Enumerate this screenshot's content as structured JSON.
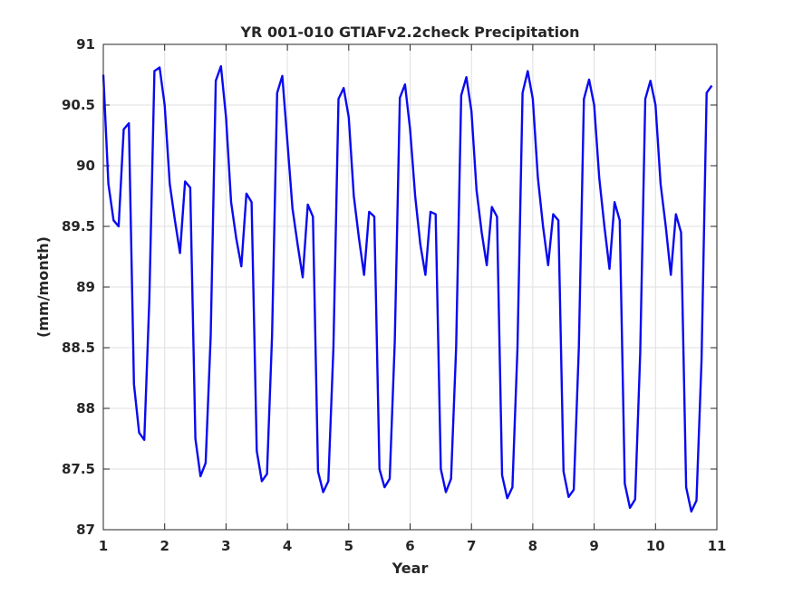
{
  "chart_data": {
    "type": "line",
    "title": "YR 001-010 GTIAFv2.2check Precipitation",
    "xlabel": "Year",
    "ylabel": "(mm/month)",
    "xlim": [
      1,
      11
    ],
    "ylim": [
      87,
      91
    ],
    "xticks": [
      1,
      2,
      3,
      4,
      5,
      6,
      7,
      8,
      9,
      10,
      11
    ],
    "yticks": [
      87,
      87.5,
      88,
      88.5,
      89,
      89.5,
      90,
      90.5,
      91
    ],
    "grid": true,
    "line_color": "#0a0af0",
    "series": [
      {
        "x": [
          1.0,
          1.083,
          1.167,
          1.25,
          1.333,
          1.417,
          1.5,
          1.583,
          1.667,
          1.75,
          1.833,
          1.917,
          2.0,
          2.083,
          2.167,
          2.25,
          2.333,
          2.417,
          2.5,
          2.583,
          2.667,
          2.75,
          2.833,
          2.917,
          3.0,
          3.083,
          3.167,
          3.25,
          3.333,
          3.417,
          3.5,
          3.583,
          3.667,
          3.75,
          3.833,
          3.917,
          4.0,
          4.083,
          4.167,
          4.25,
          4.333,
          4.417,
          4.5,
          4.583,
          4.667,
          4.75,
          4.833,
          4.917,
          5.0,
          5.083,
          5.167,
          5.25,
          5.333,
          5.417,
          5.5,
          5.583,
          5.667,
          5.75,
          5.833,
          5.917,
          6.0,
          6.083,
          6.167,
          6.25,
          6.333,
          6.417,
          6.5,
          6.583,
          6.667,
          6.75,
          6.833,
          6.917,
          7.0,
          7.083,
          7.167,
          7.25,
          7.333,
          7.417,
          7.5,
          7.583,
          7.667,
          7.75,
          7.833,
          7.917,
          8.0,
          8.083,
          8.167,
          8.25,
          8.333,
          8.417,
          8.5,
          8.583,
          8.667,
          8.75,
          8.833,
          8.917,
          9.0,
          9.083,
          9.167,
          9.25,
          9.333,
          9.417,
          9.5,
          9.583,
          9.667,
          9.75,
          9.833,
          9.917,
          10.0,
          10.083,
          10.167,
          10.25,
          10.333,
          10.417,
          10.5,
          10.583,
          10.667,
          10.75,
          10.833,
          10.917
        ],
        "values": [
          90.75,
          89.85,
          89.55,
          89.5,
          90.3,
          90.35,
          88.2,
          87.8,
          87.74,
          88.9,
          90.78,
          90.81,
          90.5,
          89.85,
          89.55,
          89.28,
          89.87,
          89.82,
          87.75,
          87.44,
          87.55,
          88.6,
          90.7,
          90.82,
          90.4,
          89.7,
          89.4,
          89.17,
          89.77,
          89.7,
          87.65,
          87.4,
          87.46,
          88.6,
          90.6,
          90.74,
          90.2,
          89.65,
          89.35,
          89.08,
          89.68,
          89.58,
          87.48,
          87.31,
          87.4,
          88.5,
          90.55,
          90.64,
          90.4,
          89.75,
          89.4,
          89.1,
          89.62,
          89.58,
          87.5,
          87.35,
          87.42,
          88.55,
          90.56,
          90.67,
          90.3,
          89.75,
          89.35,
          89.1,
          89.62,
          89.6,
          87.5,
          87.31,
          87.42,
          88.5,
          90.58,
          90.73,
          90.45,
          89.8,
          89.45,
          89.18,
          89.66,
          89.58,
          87.45,
          87.26,
          87.35,
          88.5,
          90.6,
          90.78,
          90.55,
          89.9,
          89.5,
          89.18,
          89.6,
          89.55,
          87.48,
          87.27,
          87.33,
          88.5,
          90.55,
          90.71,
          90.5,
          89.9,
          89.5,
          89.15,
          89.7,
          89.55,
          87.38,
          87.18,
          87.25,
          88.45,
          90.55,
          90.7,
          90.5,
          89.85,
          89.5,
          89.1,
          89.6,
          89.45,
          87.35,
          87.15,
          87.24,
          88.4,
          90.6,
          90.66
        ]
      }
    ]
  }
}
